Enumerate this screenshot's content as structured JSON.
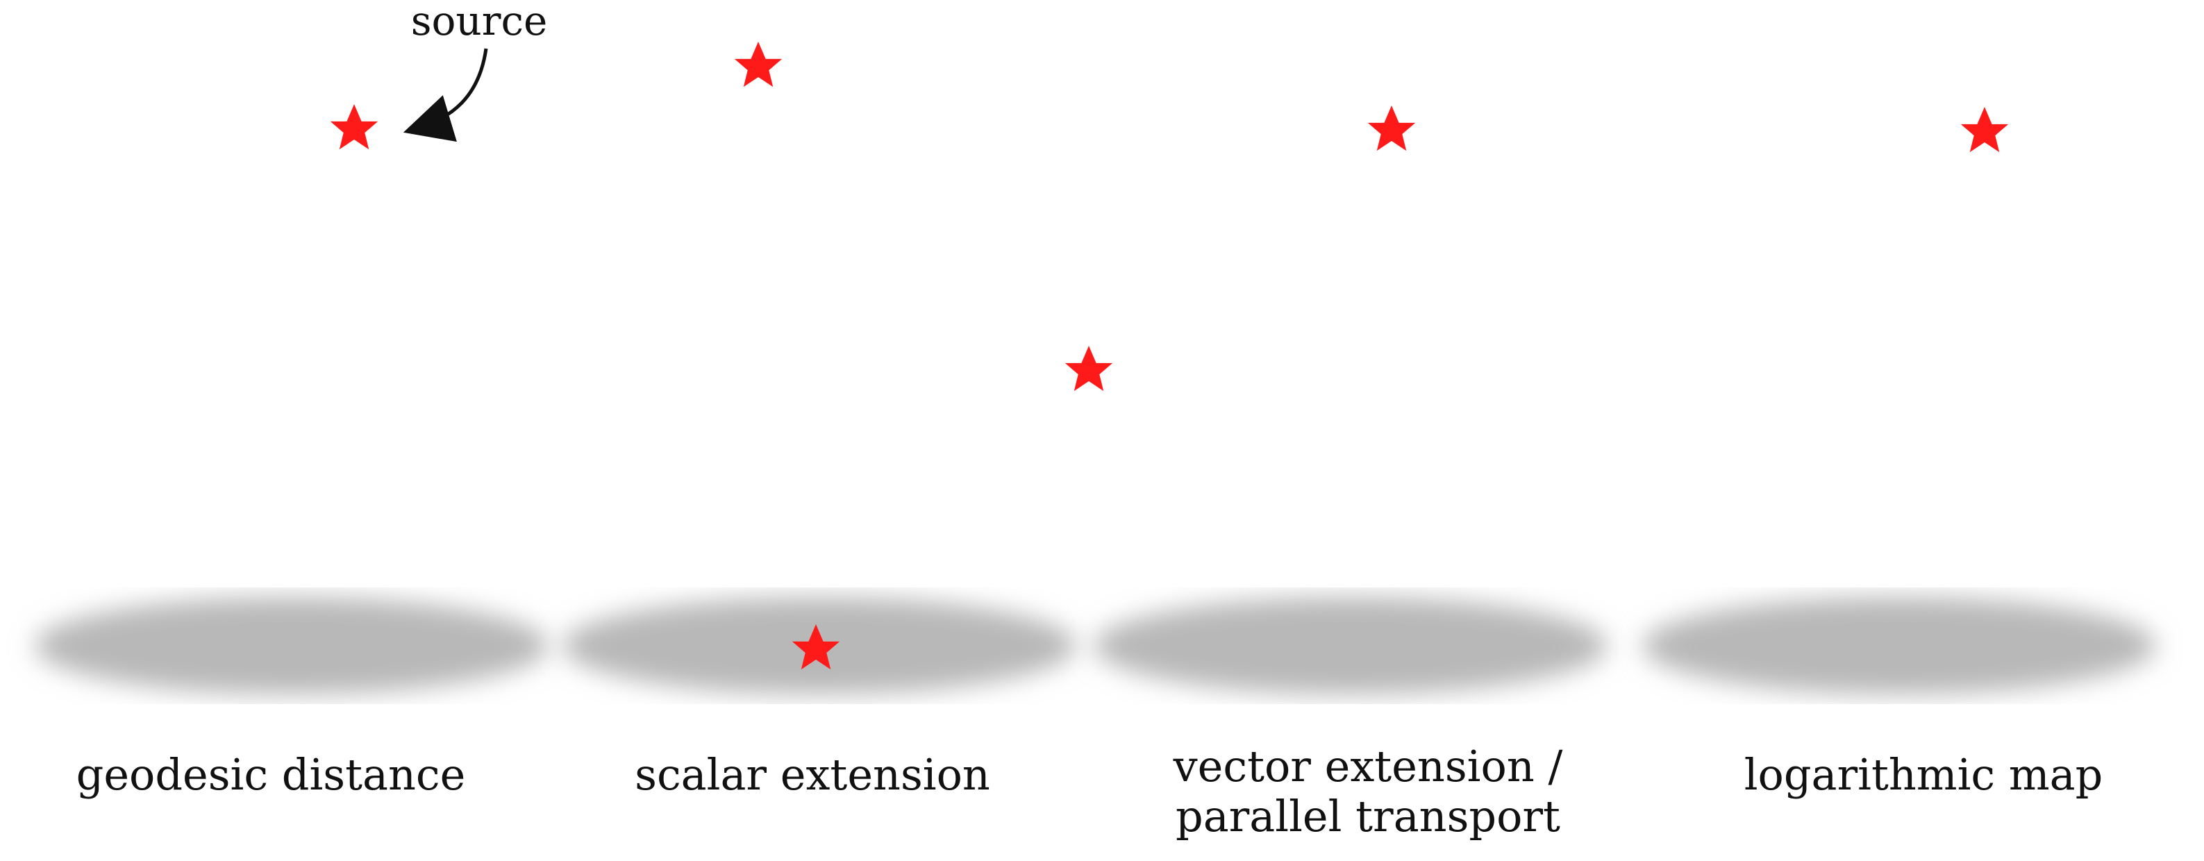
{
  "annotation": {
    "source_label": "source"
  },
  "panels": [
    {
      "id": "geodesic",
      "caption": [
        "geodesic distance"
      ]
    },
    {
      "id": "scalar",
      "caption": [
        "scalar extension"
      ]
    },
    {
      "id": "vector",
      "caption": [
        "vector extension /",
        "parallel transport"
      ]
    },
    {
      "id": "log",
      "caption": [
        "logarithmic map"
      ]
    }
  ],
  "colors": {
    "star": "#ff1a1a",
    "geo_bands": [
      "#dfe5ea",
      "#a9bccb",
      "#7f97a8",
      "#5d7f98",
      "#3f82b5",
      "#2f6a92"
    ],
    "scalar_teal": "#49c1b2",
    "scalar_yellow": "#f2e65a",
    "scalar_purple": "#7a2d99",
    "vector_blue": "#5b5be8",
    "log_palette": [
      "#2ea592",
      "#3fc0a8",
      "#8fbf3f",
      "#c8d54a",
      "#1f5f57",
      "#d05ad8"
    ],
    "shadow": "#b8b8b8"
  }
}
